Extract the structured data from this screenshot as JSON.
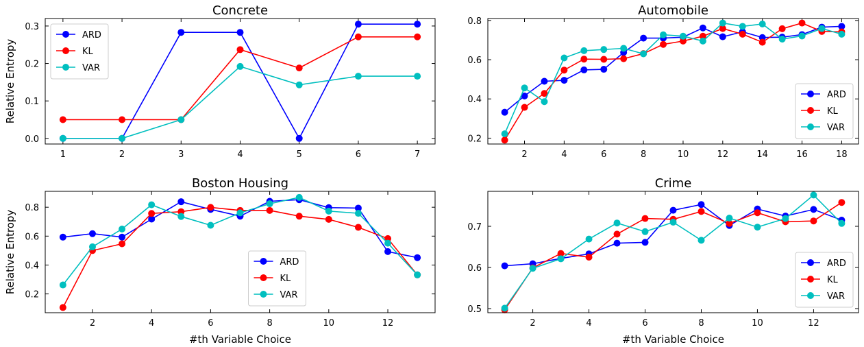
{
  "chart_data": [
    {
      "type": "line",
      "title": "Concrete",
      "xlabel": "",
      "ylabel": "Relative Entropy",
      "xlim": [
        0.7,
        7.3
      ],
      "ylim": [
        -0.015,
        0.32
      ],
      "xticks": [
        1,
        2,
        3,
        4,
        5,
        6,
        7
      ],
      "yticks": [
        0.0,
        0.1,
        0.2,
        0.3
      ],
      "ytick_labels": [
        "0.0",
        "0.1",
        "0.2",
        "0.3"
      ],
      "legend_position": "upper-left",
      "series": [
        {
          "name": "ARD",
          "color": "#0000ff",
          "x": [
            1,
            2,
            3,
            4,
            5,
            6,
            7
          ],
          "y": [
            0.0,
            0.0,
            0.283,
            0.283,
            0.0,
            0.305,
            0.305
          ]
        },
        {
          "name": "KL",
          "color": "#ff0000",
          "x": [
            1,
            2,
            3,
            4,
            5,
            6,
            7
          ],
          "y": [
            0.05,
            0.05,
            0.05,
            0.237,
            0.188,
            0.271,
            0.271
          ]
        },
        {
          "name": "VAR",
          "color": "#00bfbf",
          "x": [
            1,
            2,
            3,
            4,
            5,
            6,
            7
          ],
          "y": [
            0.0,
            0.0,
            0.05,
            0.192,
            0.143,
            0.166,
            0.166
          ]
        }
      ]
    },
    {
      "type": "line",
      "title": "Automobile",
      "xlabel": "",
      "ylabel": "",
      "xlim": [
        0.15,
        18.85
      ],
      "ylim": [
        0.17,
        0.81
      ],
      "xticks": [
        2,
        4,
        6,
        8,
        10,
        12,
        14,
        16,
        18
      ],
      "yticks": [
        0.2,
        0.4,
        0.6,
        0.8
      ],
      "ytick_labels": [
        "0.2",
        "0.4",
        "0.6",
        "0.8"
      ],
      "legend_position": "lower-right",
      "series": [
        {
          "name": "ARD",
          "color": "#0000ff",
          "x": [
            1,
            2,
            3,
            4,
            5,
            6,
            7,
            8,
            9,
            10,
            11,
            12,
            13,
            14,
            15,
            16,
            17,
            18
          ],
          "y": [
            0.332,
            0.415,
            0.49,
            0.495,
            0.548,
            0.551,
            0.637,
            0.71,
            0.71,
            0.715,
            0.762,
            0.717,
            0.742,
            0.713,
            0.715,
            0.728,
            0.766,
            0.77
          ]
        },
        {
          "name": "KL",
          "color": "#ff0000",
          "x": [
            1,
            2,
            3,
            4,
            5,
            6,
            7,
            8,
            9,
            10,
            11,
            12,
            13,
            14,
            15,
            16,
            17,
            18
          ],
          "y": [
            0.19,
            0.357,
            0.428,
            0.547,
            0.603,
            0.602,
            0.605,
            0.631,
            0.678,
            0.695,
            0.72,
            0.759,
            0.73,
            0.689,
            0.758,
            0.787,
            0.744,
            0.742
          ]
        },
        {
          "name": "VAR",
          "color": "#00bfbf",
          "x": [
            1,
            2,
            3,
            4,
            5,
            6,
            7,
            8,
            9,
            10,
            11,
            12,
            13,
            14,
            15,
            16,
            17,
            18
          ],
          "y": [
            0.222,
            0.456,
            0.386,
            0.609,
            0.646,
            0.652,
            0.658,
            0.63,
            0.727,
            0.72,
            0.695,
            0.787,
            0.77,
            0.782,
            0.705,
            0.721,
            0.759,
            0.73
          ]
        }
      ]
    },
    {
      "type": "line",
      "title": "Boston Housing",
      "xlabel": "#th Variable Choice",
      "ylabel": "Relative Entropy",
      "xlim": [
        0.4,
        13.6
      ],
      "ylim": [
        0.07,
        0.91
      ],
      "xticks": [
        2,
        4,
        6,
        8,
        10,
        12
      ],
      "yticks": [
        0.2,
        0.4,
        0.6,
        0.8
      ],
      "ytick_labels": [
        "0.2",
        "0.4",
        "0.6",
        "0.8"
      ],
      "legend_position": "lower-center",
      "series": [
        {
          "name": "ARD",
          "color": "#0000ff",
          "x": [
            1,
            2,
            3,
            4,
            5,
            6,
            7,
            8,
            9,
            10,
            11,
            12,
            13
          ],
          "y": [
            0.593,
            0.617,
            0.593,
            0.718,
            0.838,
            0.785,
            0.738,
            0.841,
            0.852,
            0.797,
            0.794,
            0.493,
            0.451
          ]
        },
        {
          "name": "KL",
          "color": "#ff0000",
          "x": [
            1,
            2,
            3,
            4,
            5,
            6,
            7,
            8,
            9,
            10,
            11,
            12,
            13
          ],
          "y": [
            0.106,
            0.5,
            0.547,
            0.757,
            0.769,
            0.799,
            0.778,
            0.778,
            0.738,
            0.716,
            0.661,
            0.583,
            0.332
          ]
        },
        {
          "name": "VAR",
          "color": "#00bfbf",
          "x": [
            1,
            2,
            3,
            4,
            5,
            6,
            7,
            8,
            9,
            10,
            11,
            12,
            13
          ],
          "y": [
            0.262,
            0.526,
            0.649,
            0.817,
            0.736,
            0.675,
            0.761,
            0.824,
            0.868,
            0.773,
            0.758,
            0.551,
            0.332
          ]
        }
      ]
    },
    {
      "type": "line",
      "title": "Crime",
      "xlabel": "#th Variable Choice",
      "ylabel": "",
      "xlim": [
        0.4,
        13.6
      ],
      "ylim": [
        0.49,
        0.785
      ],
      "xticks": [
        2,
        4,
        6,
        8,
        10,
        12
      ],
      "yticks": [
        0.5,
        0.6,
        0.7
      ],
      "ytick_labels": [
        "0.5",
        "0.6",
        "0.7"
      ],
      "legend_position": "lower-right",
      "series": [
        {
          "name": "ARD",
          "color": "#0000ff",
          "x": [
            1,
            2,
            3,
            4,
            5,
            6,
            7,
            8,
            9,
            10,
            11,
            12,
            13
          ],
          "y": [
            0.604,
            0.609,
            0.622,
            0.633,
            0.659,
            0.661,
            0.739,
            0.753,
            0.702,
            0.742,
            0.725,
            0.741,
            0.715
          ]
        },
        {
          "name": "KL",
          "color": "#ff0000",
          "x": [
            1,
            2,
            3,
            4,
            5,
            6,
            7,
            8,
            9,
            10,
            11,
            12,
            13
          ],
          "y": [
            0.497,
            0.599,
            0.634,
            0.625,
            0.681,
            0.719,
            0.717,
            0.736,
            0.707,
            0.733,
            0.711,
            0.713,
            0.758
          ]
        },
        {
          "name": "VAR",
          "color": "#00bfbf",
          "x": [
            1,
            2,
            3,
            4,
            5,
            6,
            7,
            8,
            9,
            10,
            11,
            12,
            13
          ],
          "y": [
            0.501,
            0.598,
            0.621,
            0.669,
            0.708,
            0.687,
            0.71,
            0.666,
            0.72,
            0.698,
            0.719,
            0.776,
            0.707
          ]
        }
      ]
    }
  ]
}
